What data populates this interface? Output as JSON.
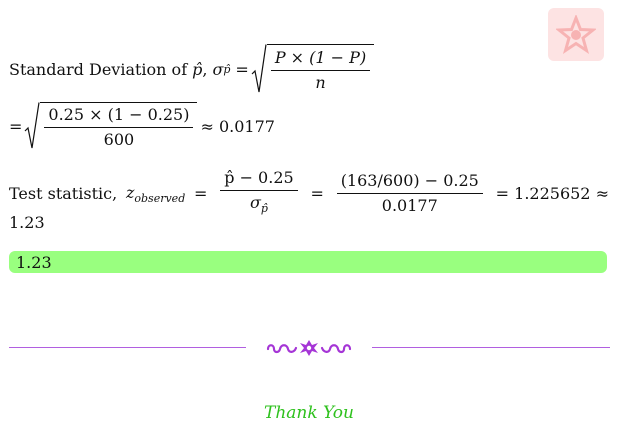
{
  "sd_line": {
    "label": "Standard Deviation of",
    "phat": "p̂",
    "comma": ",",
    "sigma": "σ",
    "sigma_sub": "p̂",
    "eq": "=",
    "num": "P × (1 − P)",
    "den": "n"
  },
  "calc_line": {
    "eq": "=",
    "num": "0.25 × (1 − 0.25)",
    "den": "600",
    "approx": "≈ 0.0177"
  },
  "test_line": {
    "label": "Test statistic,",
    "z": "z",
    "z_sub": "observed",
    "eq": "=",
    "frac1_num": "p̂ − 0.25",
    "frac1_den_sigma": "σ",
    "frac1_den_sub": "p̂",
    "frac2_num": "(163/600) − 0.25",
    "frac2_den": "0.0177",
    "result": "= 1.225652 ≈"
  },
  "wrap_value": "1.23",
  "answer_box": {
    "value": "1.23",
    "color": "#99ff7f"
  },
  "divider": {
    "color": "#b15fe0",
    "ornament_icon": "floral-ornament-icon"
  },
  "thanks": {
    "text": "Thank You",
    "color": "#2ec11d"
  },
  "logo": {
    "icon": "star-logo-icon",
    "color": "#fde3e3"
  }
}
